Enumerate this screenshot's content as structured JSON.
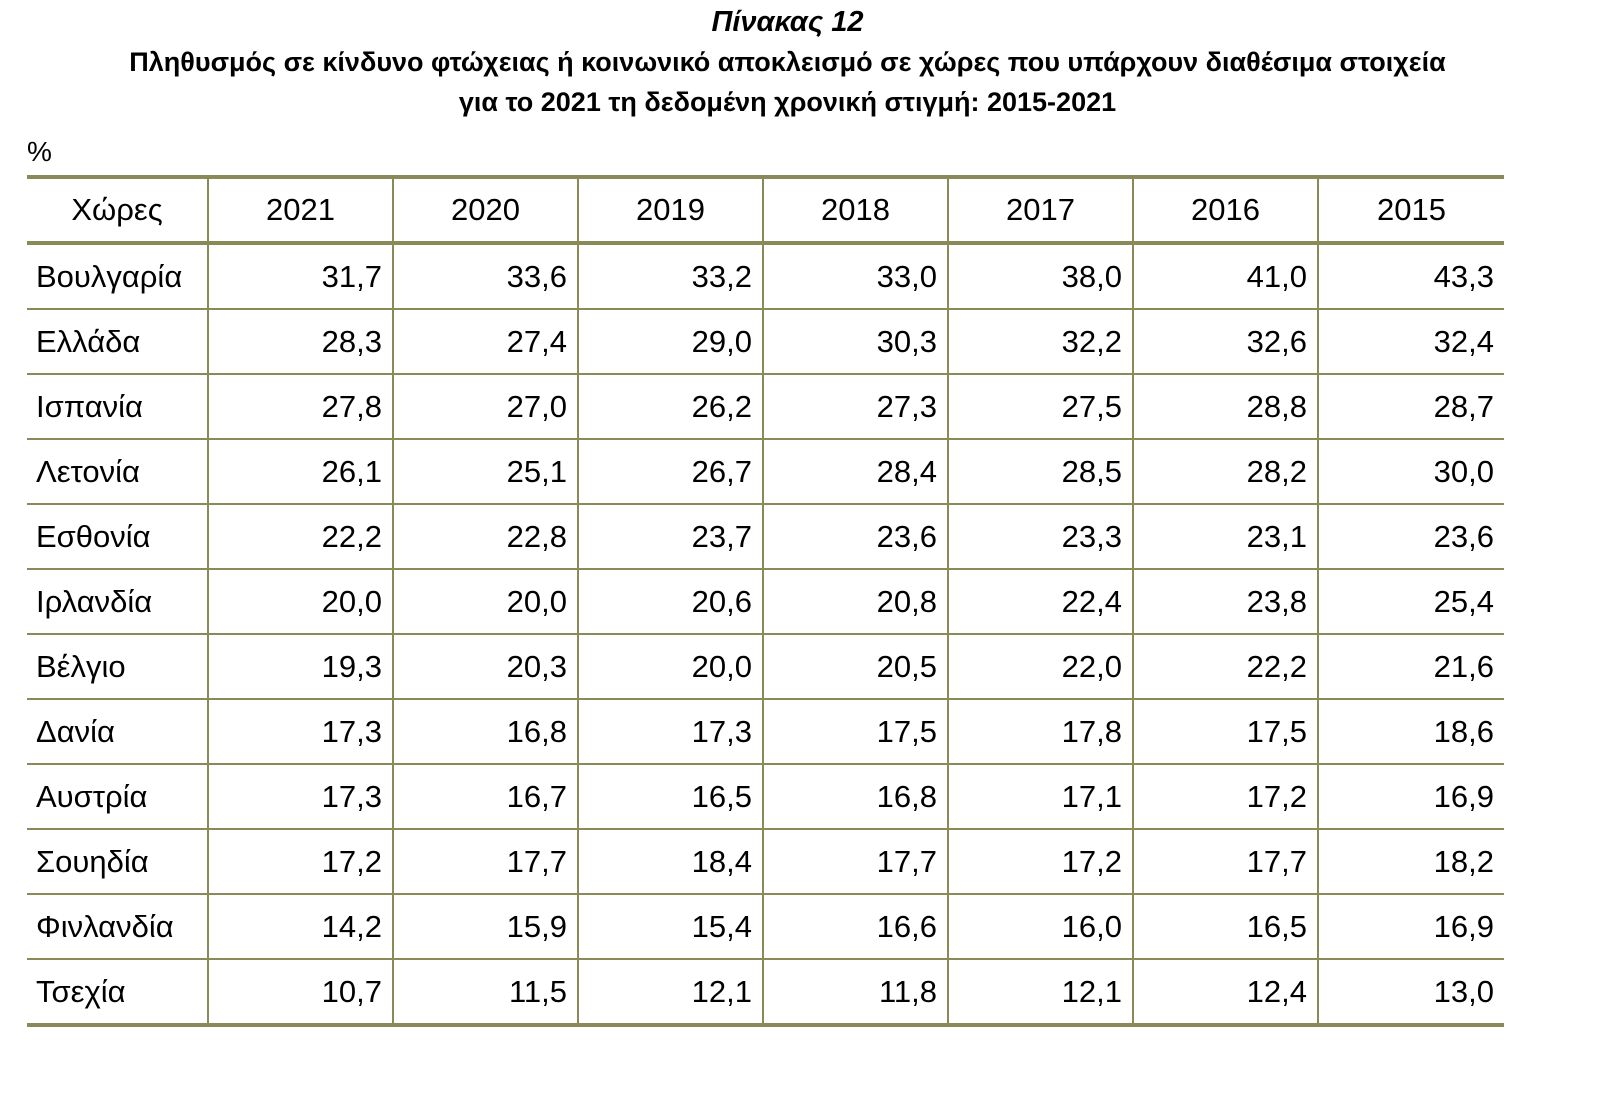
{
  "header": {
    "table_number": "Πίνακας 12",
    "title_line_1": "Πληθυσμός σε κίνδυνο φτώχειας ή κοινωνικό αποκλεισμό σε χώρες που υπάρχουν διαθέσιμα στοιχεία",
    "title_line_2": "για το 2021 τη δεδομένη χρονική στιγμή: 2015-2021",
    "unit": "%"
  },
  "table": {
    "columns": [
      "Χώρες",
      "2021",
      "2020",
      "2019",
      "2018",
      "2017",
      "2016",
      "2015"
    ],
    "rows": [
      {
        "country": "Βουλγαρία",
        "values": [
          "31,7",
          "33,6",
          "33,2",
          "33,0",
          "38,0",
          "41,0",
          "43,3"
        ]
      },
      {
        "country": "Ελλάδα",
        "values": [
          "28,3",
          "27,4",
          "29,0",
          "30,3",
          "32,2",
          "32,6",
          "32,4"
        ]
      },
      {
        "country": "Ισπανία",
        "values": [
          "27,8",
          "27,0",
          "26,2",
          "27,3",
          "27,5",
          "28,8",
          "28,7"
        ]
      },
      {
        "country": "Λετονία",
        "values": [
          "26,1",
          "25,1",
          "26,7",
          "28,4",
          "28,5",
          "28,2",
          "30,0"
        ]
      },
      {
        "country": "Εσθονία",
        "values": [
          "22,2",
          "22,8",
          "23,7",
          "23,6",
          "23,3",
          "23,1",
          "23,6"
        ]
      },
      {
        "country": "Ιρλανδία",
        "values": [
          "20,0",
          "20,0",
          "20,6",
          "20,8",
          "22,4",
          "23,8",
          "25,4"
        ]
      },
      {
        "country": "Βέλγιο",
        "values": [
          "19,3",
          "20,3",
          "20,0",
          "20,5",
          "22,0",
          "22,2",
          "21,6"
        ]
      },
      {
        "country": "Δανία",
        "values": [
          "17,3",
          "16,8",
          "17,3",
          "17,5",
          "17,8",
          "17,5",
          "18,6"
        ]
      },
      {
        "country": "Αυστρία",
        "values": [
          "17,3",
          "16,7",
          "16,5",
          "16,8",
          "17,1",
          "17,2",
          "16,9"
        ]
      },
      {
        "country": "Σουηδία",
        "values": [
          "17,2",
          "17,7",
          "18,4",
          "17,7",
          "17,2",
          "17,7",
          "18,2"
        ]
      },
      {
        "country": "Φινλανδία",
        "values": [
          "14,2",
          "15,9",
          "15,4",
          "16,6",
          "16,0",
          "16,5",
          "16,9"
        ]
      },
      {
        "country": "Τσεχία",
        "values": [
          "10,7",
          "11,5",
          "12,1",
          "11,8",
          "12,1",
          "12,4",
          "13,0"
        ]
      }
    ]
  },
  "colors": {
    "rule": "#8a8a58",
    "text": "#000000"
  }
}
